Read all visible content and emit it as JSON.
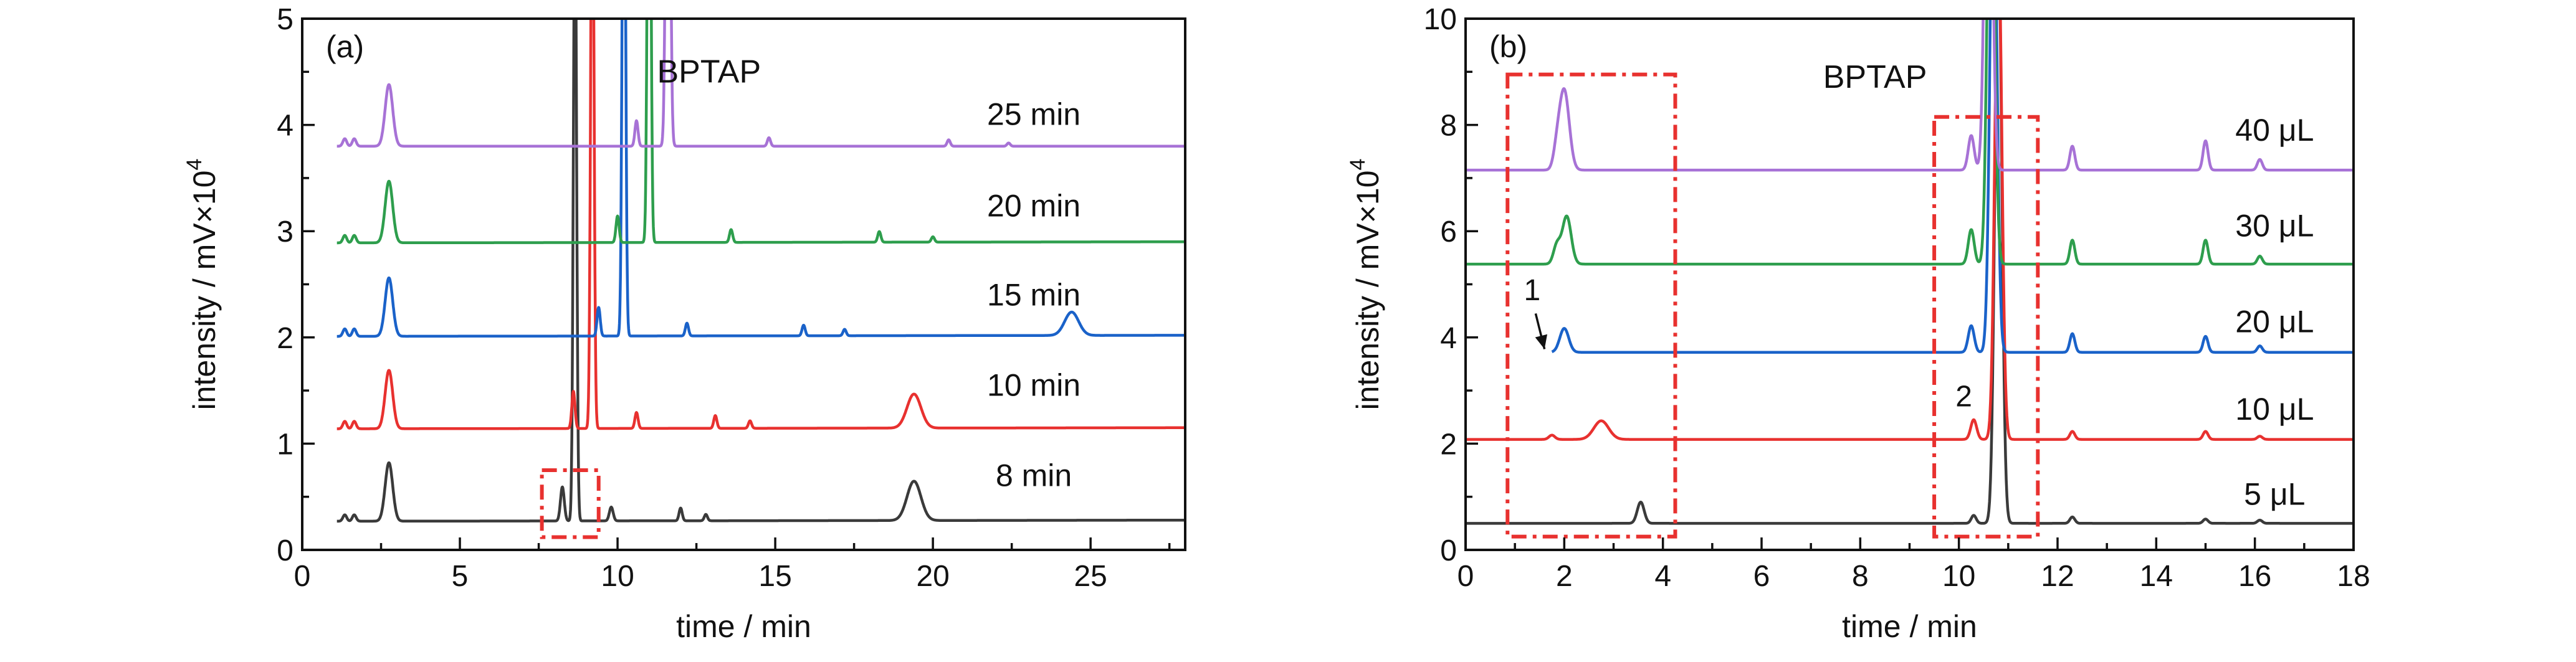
{
  "chart_data": [
    {
      "panel": "(a)",
      "type": "line",
      "xlabel": "time / min",
      "ylabel": "intensity / mV×10",
      "ylabel_exponent": "4",
      "xlim": [
        0,
        28
      ],
      "ylim": [
        0,
        5
      ],
      "xticks": [
        0,
        5,
        10,
        15,
        20,
        25
      ],
      "yticks": [
        0,
        1,
        2,
        3,
        4,
        5
      ],
      "grid": false,
      "legend": "none",
      "compound_label": "BPTAP",
      "compound_label_pos": [
        12.9,
        4.4
      ],
      "series": [
        {
          "label": "8 min",
          "label_pos": [
            23.2,
            0.6
          ],
          "color": "#3a3a3a",
          "baseline": 0.27,
          "end_baseline": 0.28,
          "x_start": 1.1,
          "x_end": 28,
          "peaks": [
            [
              1.35,
              0.06,
              0.06
            ],
            [
              1.65,
              0.06,
              0.06
            ],
            [
              2.75,
              0.55,
              0.12
            ],
            [
              8.25,
              0.32,
              0.06
            ],
            [
              8.65,
              6.0,
              0.05
            ],
            [
              9.8,
              0.13,
              0.06
            ],
            [
              12.0,
              0.12,
              0.05
            ],
            [
              12.8,
              0.06,
              0.05
            ],
            [
              19.4,
              0.37,
              0.22
            ]
          ]
        },
        {
          "label": "10 min",
          "label_pos": [
            23.2,
            1.45
          ],
          "color": "#e8312f",
          "baseline": 1.14,
          "end_baseline": 1.15,
          "x_start": 1.1,
          "x_end": 28,
          "peaks": [
            [
              1.35,
              0.07,
              0.06
            ],
            [
              1.65,
              0.07,
              0.06
            ],
            [
              2.75,
              0.55,
              0.12
            ],
            [
              8.6,
              0.35,
              0.05
            ],
            [
              9.2,
              6.0,
              0.05
            ],
            [
              10.6,
              0.15,
              0.05
            ],
            [
              13.1,
              0.12,
              0.05
            ],
            [
              14.2,
              0.07,
              0.05
            ],
            [
              19.4,
              0.32,
              0.22
            ]
          ]
        },
        {
          "label": "15 min",
          "label_pos": [
            23.2,
            2.3
          ],
          "color": "#1a62c9",
          "baseline": 2.01,
          "end_baseline": 2.02,
          "x_start": 1.1,
          "x_end": 28,
          "peaks": [
            [
              1.35,
              0.07,
              0.06
            ],
            [
              1.65,
              0.07,
              0.06
            ],
            [
              2.75,
              0.55,
              0.12
            ],
            [
              9.4,
              0.27,
              0.05
            ],
            [
              10.2,
              6.0,
              0.05
            ],
            [
              12.2,
              0.12,
              0.05
            ],
            [
              15.9,
              0.1,
              0.05
            ],
            [
              17.2,
              0.06,
              0.05
            ],
            [
              24.4,
              0.22,
              0.22
            ]
          ]
        },
        {
          "label": "20 min",
          "label_pos": [
            23.2,
            3.14
          ],
          "color": "#2e9e4d",
          "baseline": 2.89,
          "end_baseline": 2.9,
          "x_start": 1.1,
          "x_end": 28,
          "peaks": [
            [
              1.35,
              0.07,
              0.06
            ],
            [
              1.65,
              0.07,
              0.06
            ],
            [
              2.75,
              0.58,
              0.12
            ],
            [
              10.0,
              0.25,
              0.05
            ],
            [
              11.0,
              6.0,
              0.05
            ],
            [
              13.6,
              0.12,
              0.05
            ],
            [
              18.3,
              0.1,
              0.05
            ],
            [
              20.0,
              0.05,
              0.05
            ]
          ]
        },
        {
          "label": "25 min",
          "label_pos": [
            23.2,
            4.0
          ],
          "color": "#a772d6",
          "baseline": 3.8,
          "end_baseline": 3.8,
          "x_start": 1.1,
          "x_end": 28,
          "peaks": [
            [
              1.35,
              0.07,
              0.06
            ],
            [
              1.65,
              0.07,
              0.06
            ],
            [
              2.75,
              0.58,
              0.12
            ],
            [
              10.6,
              0.24,
              0.05
            ],
            [
              11.6,
              6.0,
              0.06
            ],
            [
              14.8,
              0.08,
              0.05
            ],
            [
              20.5,
              0.06,
              0.05
            ],
            [
              22.4,
              0.03,
              0.05
            ]
          ]
        }
      ],
      "annotations": [
        {
          "kind": "dashed-box",
          "color": "#e8312f",
          "x0": 7.6,
          "x1": 9.4,
          "y0": 0.12,
          "y1": 0.75
        }
      ]
    },
    {
      "panel": "(b)",
      "type": "line",
      "xlabel": "time / min",
      "ylabel": "intensity / mV×10",
      "ylabel_exponent": "4",
      "xlim": [
        0,
        18
      ],
      "ylim": [
        0,
        10
      ],
      "xticks": [
        0,
        2,
        4,
        6,
        8,
        10,
        12,
        14,
        16,
        18
      ],
      "yticks": [
        0,
        2,
        4,
        6,
        8,
        10
      ],
      "grid": false,
      "legend": "none",
      "compound_label": "BPTAP",
      "compound_label_pos": [
        8.3,
        8.7
      ],
      "series": [
        {
          "label": "5 μL",
          "label_pos": [
            16.4,
            0.85
          ],
          "color": "#3a3a3a",
          "baseline": 0.5,
          "end_baseline": 0.5,
          "x_start": 0,
          "x_end": 18,
          "peaks": [
            [
              3.55,
              0.4,
              0.07
            ],
            [
              10.3,
              0.15,
              0.05
            ],
            [
              10.8,
              11.0,
              0.07
            ],
            [
              12.3,
              0.12,
              0.05
            ],
            [
              15.0,
              0.08,
              0.05
            ],
            [
              16.1,
              0.06,
              0.05
            ]
          ]
        },
        {
          "label": "10 μL",
          "label_pos": [
            16.4,
            2.45
          ],
          "color": "#e8312f",
          "baseline": 2.08,
          "end_baseline": 2.08,
          "x_start": 0,
          "x_end": 18,
          "peaks": [
            [
              1.75,
              0.08,
              0.06
            ],
            [
              2.75,
              0.35,
              0.15
            ],
            [
              10.3,
              0.37,
              0.06
            ],
            [
              10.8,
              9.5,
              0.07
            ],
            [
              12.3,
              0.15,
              0.05
            ],
            [
              15.0,
              0.15,
              0.05
            ],
            [
              16.1,
              0.06,
              0.05
            ]
          ]
        },
        {
          "label": "20 μL",
          "label_pos": [
            16.4,
            4.1
          ],
          "color": "#1a62c9",
          "baseline": 3.72,
          "end_baseline": 3.72,
          "x_start": 1.75,
          "x_end": 18,
          "peaks": [
            [
              2.0,
              0.45,
              0.09
            ],
            [
              10.25,
              0.5,
              0.06
            ],
            [
              10.7,
              9.5,
              0.07
            ],
            [
              12.3,
              0.35,
              0.05
            ],
            [
              15.0,
              0.3,
              0.05
            ],
            [
              16.1,
              0.12,
              0.05
            ]
          ]
        },
        {
          "label": "30 μL",
          "label_pos": [
            16.4,
            5.9
          ],
          "color": "#2e9e4d",
          "baseline": 5.38,
          "end_baseline": 5.38,
          "x_start": 0,
          "x_end": 18,
          "peaks": [
            [
              1.85,
              0.35,
              0.07
            ],
            [
              2.05,
              0.9,
              0.09
            ],
            [
              10.25,
              0.65,
              0.06
            ],
            [
              10.65,
              9.5,
              0.07
            ],
            [
              12.3,
              0.45,
              0.05
            ],
            [
              15.0,
              0.45,
              0.05
            ],
            [
              16.1,
              0.15,
              0.05
            ]
          ]
        },
        {
          "label": "40 μL",
          "label_pos": [
            16.4,
            7.7
          ],
          "color": "#a772d6",
          "baseline": 7.15,
          "end_baseline": 7.15,
          "x_start": 0,
          "x_end": 18,
          "peaks": [
            [
              1.85,
              0.3,
              0.07
            ],
            [
              2.0,
              1.5,
              0.1
            ],
            [
              10.25,
              0.65,
              0.06
            ],
            [
              10.6,
              9.5,
              0.07
            ],
            [
              12.3,
              0.45,
              0.05
            ],
            [
              15.0,
              0.55,
              0.05
            ],
            [
              16.1,
              0.2,
              0.05
            ]
          ]
        }
      ],
      "annotations": [
        {
          "kind": "dashed-box",
          "color": "#e8312f",
          "x0": 0.85,
          "x1": 4.25,
          "y0": 0.25,
          "y1": 8.95
        },
        {
          "kind": "dashed-box",
          "color": "#e8312f",
          "x0": 9.5,
          "x1": 11.6,
          "y0": 0.25,
          "y1": 8.15
        },
        {
          "kind": "text",
          "text": "1",
          "x": 1.35,
          "y": 4.7
        },
        {
          "kind": "arrow",
          "x0": 1.42,
          "y0": 4.45,
          "x1": 1.6,
          "y1": 3.78
        },
        {
          "kind": "text",
          "text": "2",
          "x": 10.1,
          "y": 2.7
        }
      ]
    }
  ]
}
